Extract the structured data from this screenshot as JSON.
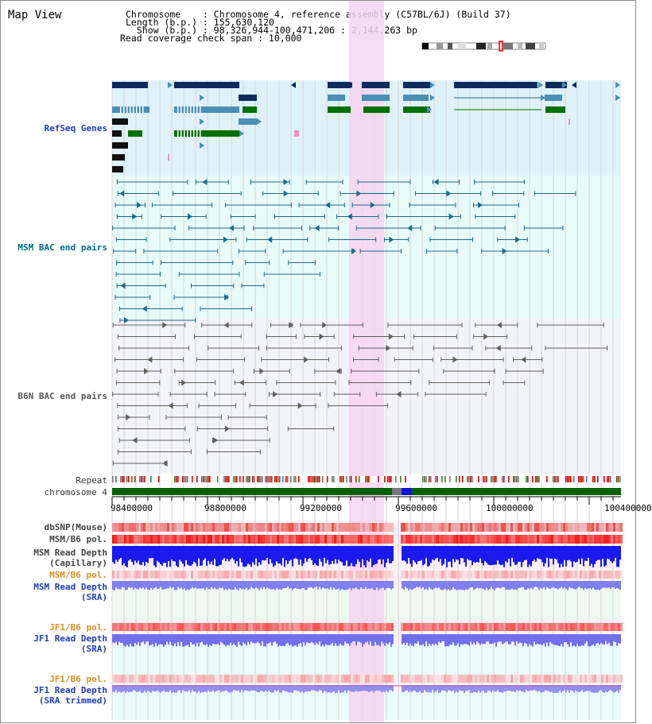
{
  "view_title": "Map View",
  "info": {
    "chromosome": "Chromosome    : Chromosome 4, reference assembly (C57BL/6J) (Build 37)",
    "length": "Length (b.p.) : 155,630,120",
    "show": "  Show (b.p.) : 98,326,944-100,471,206 : 2,144,263 bp",
    "coverage": "Read coverage check span : 10,000"
  },
  "tracks": {
    "refseq": "RefSeq Genes",
    "msm_bac": "MSM BAC end pairs",
    "b6n_bac": "B6N BAC end pairs",
    "repeat": "Repeat",
    "chromosome": "chromosome 4",
    "dbsnp": "dbSNP(Mouse)",
    "msm_b6_pol_1": "MSM/B6 pol.",
    "msm_depth_cap_1": "MSM Read Depth",
    "msm_depth_cap_2": "(Capillary)",
    "msm_b6_pol_2": "MSM/B6 pol.",
    "msm_depth_sra_1": "MSM Read Depth",
    "msm_depth_sra_2": "(SRA)",
    "jf1_pol_1": "JF1/B6 pol.",
    "jf1_depth_1": "JF1 Read Depth",
    "jf1_depth_2": "(SRA)",
    "jf1_pol_2": "JF1/B6 pol.",
    "jf1_trim_1": "JF1 Read Depth",
    "jf1_trim_2": "(SRA trimmed)"
  },
  "axis": {
    "ticks": [
      "98400000",
      "98800000",
      "99200000",
      "99600000",
      "100000000",
      "100400000"
    ]
  },
  "colors": {
    "refseq_bg": "#dff2fa",
    "msm_bac_bg": "#e7fbfb",
    "b6n_bac_bg": "#f3f3fb",
    "highlight": "#f7d4f0",
    "gene_dark": "#0e2b5e",
    "gene_mid": "#4a8fb6",
    "gene_green": "#007000",
    "msm_line": "#1d6a8a",
    "b6n_line": "#606060",
    "chromosome_bar": "#006000",
    "label_blue": "#1e3dbd",
    "label_orange": "#e09020",
    "label_gray": "#444444"
  }
}
